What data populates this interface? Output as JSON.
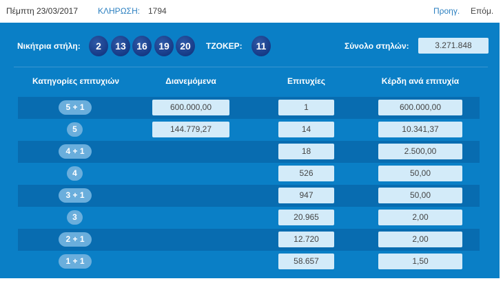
{
  "header": {
    "date": "Πέμπτη 23/03/2017",
    "draw_label": "ΚΛΗΡΩΣΗ:",
    "draw_number": "1794",
    "prev": "Προηγ.",
    "next": "Επόμ."
  },
  "winning": {
    "label": "Νικήτρια στήλη:",
    "numbers": [
      "2",
      "13",
      "16",
      "19",
      "20"
    ],
    "joker_label": "ΤΖΟΚΕΡ:",
    "joker": "11",
    "total_label": "Σύνολο στηλών:",
    "total": "3.271.848"
  },
  "columns": [
    "Κατηγορίες επιτυχιών",
    "Διανεμόμενα",
    "Επιτυχίες",
    "Κέρδη ανά επιτυχία"
  ],
  "rows": [
    {
      "category": "5 + 1",
      "distributed": "600.000,00",
      "winners": "1",
      "prize": "600.000,00"
    },
    {
      "category": "5",
      "distributed": "144.779,27",
      "winners": "14",
      "prize": "10.341,37"
    },
    {
      "category": "4 + 1",
      "distributed": "",
      "winners": "18",
      "prize": "2.500,00"
    },
    {
      "category": "4",
      "distributed": "",
      "winners": "526",
      "prize": "50,00"
    },
    {
      "category": "3 + 1",
      "distributed": "",
      "winners": "947",
      "prize": "50,00"
    },
    {
      "category": "3",
      "distributed": "",
      "winners": "20.965",
      "prize": "2,00"
    },
    {
      "category": "2 + 1",
      "distributed": "",
      "winners": "12.720",
      "prize": "2,00"
    },
    {
      "category": "1 + 1",
      "distributed": "",
      "winners": "58.657",
      "prize": "1,50"
    }
  ]
}
